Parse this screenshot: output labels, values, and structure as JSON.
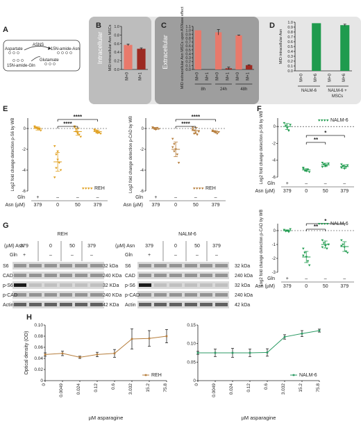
{
  "panel_letters": {
    "A": "A",
    "B": "B",
    "C": "C",
    "D": "D",
    "E": "E",
    "F": "F",
    "G": "G",
    "H": "H"
  },
  "colors": {
    "panel_gray": "#bdbdbd",
    "panel_dark": "#9e9e9e",
    "panel_light": "#e6e6e6",
    "salmon": "#e8796b",
    "maroon": "#9c2a22",
    "green": "#1f9b4e",
    "gold": "#e0a020",
    "brown": "#b67d3b",
    "teal": "#2a9a63"
  },
  "panel_A": {
    "enzyme": "ASNS",
    "substrate1": "Aspartate",
    "substrate2": "15N-amide-Gln",
    "product1": "15N-amide-Asn",
    "product2": "Glutamate"
  },
  "chart_data": [
    {
      "id": "B",
      "type": "bar",
      "title": "Intracellular",
      "ylabel": "MID intracellular Asn MSCs",
      "categories": [
        "M+0",
        "M+1"
      ],
      "values": [
        0.57,
        0.48
      ],
      "errors": [
        0.02,
        0.02
      ],
      "ylim": [
        0,
        1.0
      ],
      "yticks": [
        "0.0",
        "0.2",
        "0.4",
        "0.6",
        "0.8",
        "1.0"
      ]
    },
    {
      "id": "C",
      "type": "bar",
      "title": "Extracellular",
      "ylabel": "MID extracellular Asn MSCs upon ASNase effect",
      "categories": [
        "M+0",
        "M+1",
        "M+0",
        "M+1",
        "M+0",
        "M+1"
      ],
      "groups": [
        "8h",
        "24h",
        "48h"
      ],
      "values": [
        1.0,
        0.0,
        0.95,
        0.03,
        0.87,
        0.11
      ],
      "errors": [
        0,
        0,
        0.07,
        0.03,
        0.01,
        0.01
      ],
      "ylim": [
        0,
        1.1
      ],
      "yticks": [
        "0.0",
        "0.1",
        "0.2",
        "0.3",
        "0.4",
        "0.5",
        "0.6",
        "0.7",
        "0.8",
        "0.9",
        "1.0",
        "1.1"
      ]
    },
    {
      "id": "D",
      "type": "bar",
      "ylabel": "MID intracellular Asn",
      "categories": [
        "M+0",
        "M+6",
        "M+0",
        "M+6"
      ],
      "groups": [
        "NALM-6",
        "NALM-6 + MSCs"
      ],
      "values": [
        0.0,
        0.98,
        0.0,
        0.94
      ],
      "errors": [
        0,
        0,
        0,
        0.02
      ],
      "ylim": [
        0,
        1.0
      ],
      "yticks": [
        "0.0",
        "0.1",
        "0.2",
        "0.3",
        "0.4",
        "0.5",
        "0.6",
        "0.7",
        "0.8",
        "0.9",
        "1.0"
      ]
    },
    {
      "id": "E1",
      "type": "scatter",
      "ylabel": "Log2 fold change detection p-S6 by WB",
      "legend": "REH",
      "ylim": [
        -6,
        1
      ],
      "yticks": [
        "-6",
        "-4",
        "-2",
        "0"
      ],
      "conditions": [
        {
          "gln": "+",
          "asn": "379"
        },
        {
          "gln": "–",
          "asn": "0"
        },
        {
          "gln": "–",
          "asn": "50"
        },
        {
          "gln": "–",
          "asn": "379"
        }
      ],
      "points": [
        [
          0.2,
          0.1,
          0,
          -0.1,
          -0.2,
          0.1,
          0.05,
          -0.05,
          0.0
        ],
        [
          -1.7,
          -2.5,
          -3.0,
          -3.3,
          -4.0,
          -4.7,
          -3.8,
          -2.2
        ],
        [
          0.2,
          -0.1,
          -0.4,
          -0.6,
          -0.8,
          0.1,
          -0.3,
          -0.5
        ],
        [
          -0.1,
          -0.2,
          -0.3,
          -0.4,
          -0.5,
          -0.2,
          -0.35,
          -0.45
        ]
      ],
      "means": [
        0,
        -3.2,
        -0.3,
        -0.3
      ],
      "sds": [
        0.15,
        0.9,
        0.35,
        0.15
      ],
      "significance": [
        {
          "from": 1,
          "to": 2,
          "label": "****"
        },
        {
          "from": 1,
          "to": 3,
          "label": "****"
        }
      ]
    },
    {
      "id": "E2",
      "type": "scatter",
      "ylabel": "Log2 fold change detection p-CAD by WB",
      "legend": "REH",
      "ylim": [
        -6,
        1
      ],
      "yticks": [
        "-6",
        "-4",
        "-2",
        "0"
      ],
      "conditions": [
        {
          "gln": "+",
          "asn": "379"
        },
        {
          "gln": "–",
          "asn": "0"
        },
        {
          "gln": "–",
          "asn": "50"
        },
        {
          "gln": "–",
          "asn": "379"
        }
      ],
      "points": [
        [
          0.1,
          0,
          -0.1,
          0.05,
          -0.05,
          0.1,
          0.0,
          -0.1
        ],
        [
          -1.0,
          -1.5,
          -2.0,
          -2.5,
          -3.3,
          -1.8,
          -2.2
        ],
        [
          0.1,
          -0.2,
          -0.4,
          -0.6,
          -0.3,
          -0.1,
          -0.5
        ],
        [
          -0.2,
          -0.3,
          -0.4,
          -0.5,
          -0.35,
          -0.25
        ]
      ],
      "means": [
        0,
        -2.0,
        -0.2,
        -0.3
      ],
      "sds": [
        0.1,
        0.7,
        0.3,
        0.1
      ],
      "significance": [
        {
          "from": 1,
          "to": 2,
          "label": "****"
        },
        {
          "from": 1,
          "to": 3,
          "label": "****"
        }
      ]
    },
    {
      "id": "F1",
      "type": "scatter",
      "ylabel": "Log2 fold change detection p-S6 by WB",
      "legend": "NALM-6",
      "ylim": [
        -6,
        1
      ],
      "yticks": [
        "-6",
        "-4",
        "-2",
        "0"
      ],
      "conditions": [
        {
          "gln": "+",
          "asn": "379"
        },
        {
          "gln": "–",
          "asn": "0"
        },
        {
          "gln": "–",
          "asn": "50"
        },
        {
          "gln": "–",
          "asn": "379"
        }
      ],
      "points": [
        [
          0.4,
          0.1,
          -0.2,
          -0.5,
          0.2
        ],
        [
          -5.0,
          -5.2,
          -5.3,
          -5.1,
          -5.4,
          -4.9
        ],
        [
          -4.3,
          -4.5,
          -4.7,
          -4.6,
          -4.4,
          -4.8
        ],
        [
          -4.5,
          -4.7,
          -5.0,
          -4.8,
          -4.6,
          -4.9
        ]
      ],
      "means": [
        0,
        -5.15,
        -4.55,
        -4.75
      ],
      "sds": [
        0.35,
        0.15,
        0.2,
        0.2
      ],
      "significance": [
        {
          "from": 1,
          "to": 2,
          "label": "**"
        },
        {
          "from": 1,
          "to": 3,
          "label": "*"
        }
      ]
    },
    {
      "id": "F2",
      "type": "scatter",
      "ylabel": "Log2 fold change detection p-CAD by WB",
      "legend": "NALM-6",
      "ylim": [
        -3,
        0.5
      ],
      "yticks": [
        "-3",
        "-2",
        "-1",
        "0"
      ],
      "conditions": [
        {
          "gln": "+",
          "asn": "379"
        },
        {
          "gln": "–",
          "asn": "0"
        },
        {
          "gln": "–",
          "asn": "50"
        },
        {
          "gln": "–",
          "asn": "379"
        }
      ],
      "points": [
        [
          0.05,
          -0.05,
          0.0,
          -0.1,
          0.1
        ],
        [
          -1.3,
          -1.6,
          -1.9,
          -2.2,
          -2.5,
          -1.8
        ],
        [
          -0.7,
          -0.9,
          -1.1,
          -1.3,
          -1.0,
          -1.2
        ],
        [
          -0.7,
          -1.0,
          -1.2,
          -1.5,
          -1.6,
          -1.1
        ]
      ],
      "means": [
        0,
        -1.9,
        -1.0,
        -1.15
      ],
      "sds": [
        0.05,
        0.4,
        0.25,
        0.35
      ],
      "significance": [
        {
          "from": 1,
          "to": 2,
          "label": "**"
        },
        {
          "from": 1,
          "to": 3,
          "label": "*"
        }
      ]
    },
    {
      "id": "H1",
      "type": "line",
      "ylabel": "Optical density (OD)",
      "xlabel": "µM asparagine",
      "legend": "REH",
      "categories": [
        "0",
        "0.0049",
        "0.024",
        "0.12",
        "0.6",
        "3.032",
        "15.2",
        "75.8"
      ],
      "values": [
        0.047,
        0.049,
        0.042,
        0.047,
        0.049,
        0.075,
        0.076,
        0.08
      ],
      "errors": [
        0.003,
        0.004,
        0.002,
        0.004,
        0.007,
        0.018,
        0.014,
        0.012
      ],
      "ylim": [
        0,
        0.1
      ],
      "yticks": [
        "0",
        "0.02",
        "0.04",
        "0.06",
        "0.08",
        "0.10"
      ]
    },
    {
      "id": "H2",
      "type": "line",
      "ylabel": "",
      "xlabel": "µM asparagine",
      "legend": "NALM-6",
      "categories": [
        "0",
        "0.0049",
        "0.024",
        "0.12",
        "0.6",
        "3.032",
        "15.2",
        "75.8"
      ],
      "values": [
        0.075,
        0.075,
        0.075,
        0.075,
        0.076,
        0.118,
        0.127,
        0.135
      ],
      "errors": [
        0.004,
        0.01,
        0.012,
        0.01,
        0.01,
        0.006,
        0.008,
        0.004
      ],
      "ylim": [
        0,
        0.15
      ],
      "yticks": [
        "0",
        "0.05",
        "0.10",
        "0.15"
      ]
    }
  ],
  "panel_G": {
    "reh_title": "REH",
    "nalm_title": "NALM-6",
    "asn_label": "(µM) Asn",
    "gln_label": "Gln",
    "asn_values": [
      "379",
      "0",
      "50",
      "379"
    ],
    "gln_values": [
      "+",
      "–",
      "–",
      "–"
    ],
    "rows": [
      "S6",
      "CAD",
      "p-S6",
      "p-CAD",
      "Actin"
    ],
    "sizes": [
      "32 kDa",
      "240 KDa",
      "32 KDa",
      "240 KDa",
      "42 KDa"
    ],
    "nalm_sizes": [
      "32 kDa",
      "240 kDa",
      "32 kDa",
      "240 kDa",
      "42 kDa"
    ]
  },
  "axis_text": {
    "gln": "Gln",
    "asn": "Asn (µM)"
  }
}
